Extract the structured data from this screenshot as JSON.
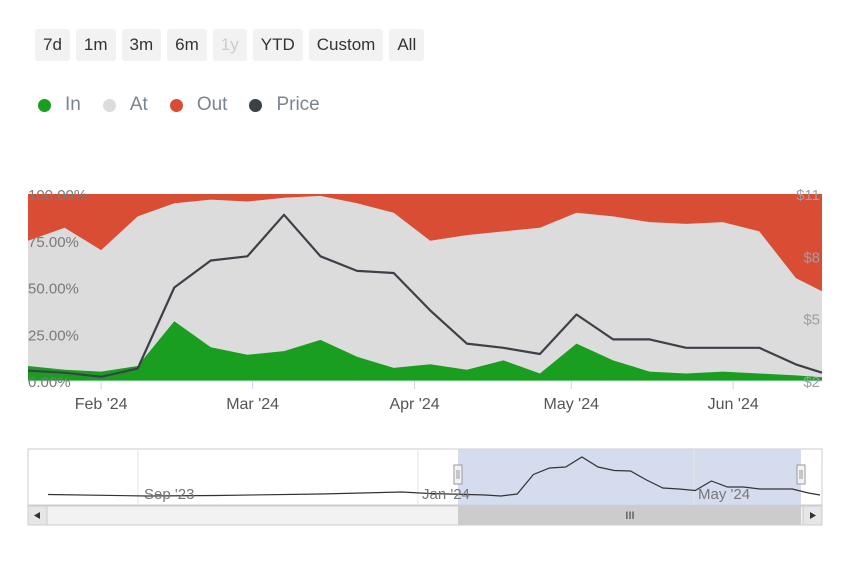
{
  "range_selector": {
    "buttons": [
      {
        "label": "7d",
        "enabled": true
      },
      {
        "label": "1m",
        "enabled": true
      },
      {
        "label": "3m",
        "enabled": true
      },
      {
        "label": "6m",
        "enabled": true
      },
      {
        "label": "1y",
        "enabled": false
      },
      {
        "label": "YTD",
        "enabled": true
      },
      {
        "label": "Custom",
        "enabled": true
      },
      {
        "label": "All",
        "enabled": true
      }
    ]
  },
  "legend": [
    {
      "label": "In",
      "color": "#1a9e1f"
    },
    {
      "label": "At",
      "color": "#dcdcdc"
    },
    {
      "label": "Out",
      "color": "#d94d35"
    },
    {
      "label": "Price",
      "color": "#3d4147"
    }
  ],
  "navigator": {
    "tick_labels": [
      "Sep '23",
      "Jan '24",
      "May '24"
    ],
    "scrollbar_grip": "III"
  },
  "chart_data": {
    "type": "area",
    "title": "",
    "x_tick_labels": [
      "Feb '24",
      "Mar '24",
      "Apr '24",
      "May '24",
      "Jun '24"
    ],
    "y_left_ticks": [
      "0.00%",
      "25.00%",
      "50.00%",
      "75.00%",
      "100.00%"
    ],
    "y_right_ticks": [
      "$2",
      "$5",
      "$8",
      "$11"
    ],
    "ylim_left": [
      0,
      100
    ],
    "ylim_right": [
      2,
      11
    ],
    "stacked_percent": true,
    "legend_position": "top-left",
    "x_dates": [
      "2024-01-18",
      "2024-01-25",
      "2024-02-01",
      "2024-02-08",
      "2024-02-15",
      "2024-02-22",
      "2024-02-29",
      "2024-03-07",
      "2024-03-14",
      "2024-03-21",
      "2024-03-28",
      "2024-04-04",
      "2024-04-11",
      "2024-04-18",
      "2024-04-25",
      "2024-05-02",
      "2024-05-09",
      "2024-05-16",
      "2024-05-23",
      "2024-05-30",
      "2024-06-06",
      "2024-06-13",
      "2024-06-18"
    ],
    "series": [
      {
        "name": "In",
        "color": "#1a9e1f",
        "values": [
          8,
          6,
          5,
          8,
          32,
          18,
          14,
          16,
          22,
          13,
          7,
          9,
          6,
          11,
          4,
          20,
          11,
          5,
          4,
          5,
          4,
          3,
          2
        ]
      },
      {
        "name": "Out",
        "color": "#d94d35",
        "values": [
          25,
          18,
          30,
          12,
          5,
          3,
          4,
          2,
          1,
          5,
          10,
          25,
          22,
          20,
          18,
          10,
          12,
          15,
          16,
          15,
          20,
          45,
          52
        ]
      },
      {
        "name": "Price",
        "color": "#3d4147",
        "values": [
          2.5,
          2.4,
          2.2,
          2.6,
          6.5,
          7.8,
          8.0,
          10.0,
          8.0,
          7.3,
          7.2,
          5.4,
          3.8,
          3.6,
          3.3,
          5.2,
          4.0,
          4.0,
          3.6,
          3.6,
          3.6,
          2.8,
          2.4
        ]
      }
    ]
  }
}
